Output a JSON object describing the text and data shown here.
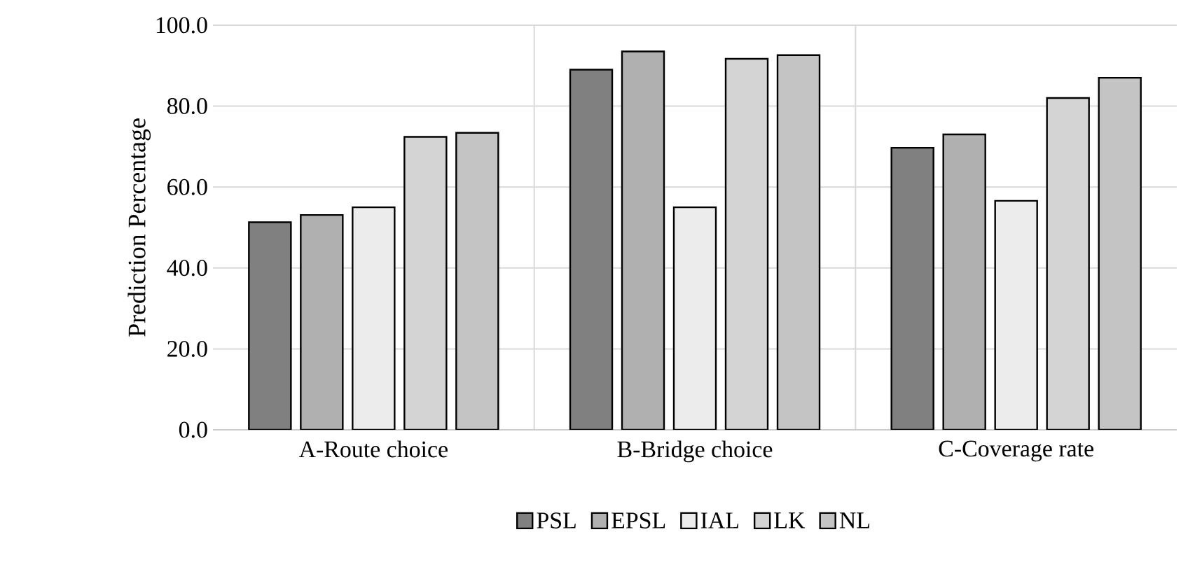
{
  "chart_data": {
    "type": "bar",
    "ylabel": "Prediction Percentage",
    "categories": [
      "A-Route choice",
      "B-Bridge choice",
      "C-Coverage rate"
    ],
    "series": [
      {
        "name": "PSL",
        "color": "#808080",
        "values": [
          51.3,
          89.0,
          69.7
        ]
      },
      {
        "name": "EPSL",
        "color": "#b0b0b0",
        "values": [
          53.1,
          93.5,
          73.0
        ]
      },
      {
        "name": "IAL",
        "color": "#ececec",
        "values": [
          55.0,
          55.0,
          56.6
        ]
      },
      {
        "name": "LK",
        "color": "#d4d4d4",
        "values": [
          72.4,
          91.7,
          82.0
        ]
      },
      {
        "name": "NL",
        "color": "#c4c4c4",
        "values": [
          73.4,
          92.6,
          87.0
        ]
      }
    ],
    "ylim": [
      0,
      100
    ],
    "yticks": [
      {
        "value": 0,
        "label": "0.0"
      },
      {
        "value": 20,
        "label": "20.0"
      },
      {
        "value": 40,
        "label": "40.0"
      },
      {
        "value": 60,
        "label": "60.0"
      },
      {
        "value": 80,
        "label": "80.0"
      },
      {
        "value": 100,
        "label": "100.0"
      }
    ],
    "grid": true,
    "legend": "bottom"
  }
}
